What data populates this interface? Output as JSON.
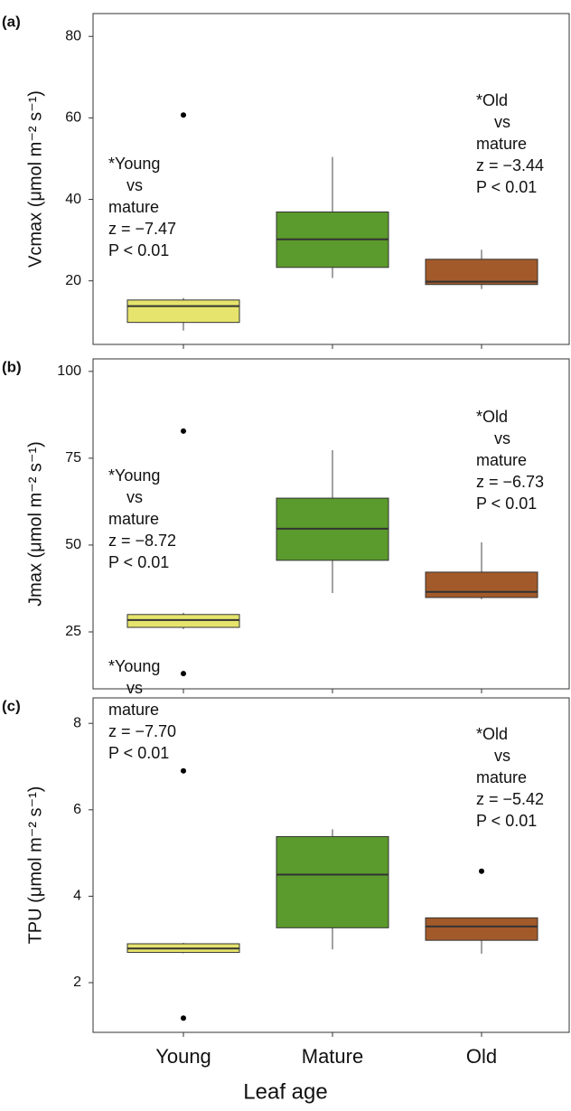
{
  "chart_data": [
    {
      "type": "box",
      "panel": "(a)",
      "ylabel": "Vcmax (μmol m⁻² s⁻¹)",
      "ylim": [
        4.4,
        85.6
      ],
      "yticks": [
        20,
        40,
        60,
        80
      ],
      "colors": [
        "#e6e46c",
        "#5b9a2c",
        "#a35a2a"
      ],
      "boxes": [
        {
          "whislo": 7.8,
          "q1": 9.8,
          "med": 13.8,
          "q3": 15.3,
          "whishi": 15.8,
          "fliers": [
            60.7
          ]
        },
        {
          "whislo": 20.7,
          "q1": 23.3,
          "med": 30.2,
          "q3": 36.9,
          "whishi": 50.4,
          "fliers": []
        },
        {
          "whislo": 18.0,
          "q1": 19.1,
          "med": 19.8,
          "q3": 25.3,
          "whishi": 27.6,
          "fliers": []
        }
      ],
      "annotations": [
        [
          "*Young",
          "vs",
          "mature",
          "z = −7.47",
          "P < 0.01"
        ],
        [
          "*Old",
          "vs",
          "mature",
          "z = −3.44",
          "P < 0.01"
        ]
      ]
    },
    {
      "type": "box",
      "panel": "(b)",
      "ylabel": "Jmax (μmol m⁻² s⁻¹)",
      "ylim": [
        8.6,
        103.6
      ],
      "yticks": [
        25,
        50,
        75,
        100
      ],
      "colors": [
        "#e6e46c",
        "#5b9a2c",
        "#a35a2a"
      ],
      "boxes": [
        {
          "whislo": 25.8,
          "q1": 26.3,
          "med": 28.4,
          "q3": 30.0,
          "whishi": 30.5,
          "fliers": [
            82.8,
            13.0
          ]
        },
        {
          "whislo": 36.2,
          "q1": 45.6,
          "med": 54.7,
          "q3": 63.5,
          "whishi": 77.3,
          "fliers": []
        },
        {
          "whislo": 34.4,
          "q1": 34.9,
          "med": 36.5,
          "q3": 42.2,
          "whishi": 50.8,
          "fliers": []
        }
      ],
      "annotations": [
        [
          "*Young",
          "vs",
          "mature",
          "z = −8.72",
          "P < 0.01"
        ],
        [
          "*Old",
          "vs",
          "mature",
          "z = −6.73",
          "P < 0.01"
        ]
      ]
    },
    {
      "type": "box",
      "panel": "(c)",
      "ylabel": "TPU (μmol m⁻² s⁻¹)",
      "ylim": [
        0.85,
        8.59
      ],
      "yticks": [
        2,
        4,
        6,
        8
      ],
      "colors": [
        "#e6e46c",
        "#5b9a2c",
        "#a35a2a"
      ],
      "boxes": [
        {
          "whislo": 2.68,
          "q1": 2.7,
          "med": 2.79,
          "q3": 2.9,
          "whishi": 2.92,
          "fliers": [
            6.9,
            1.18
          ]
        },
        {
          "whislo": 2.77,
          "q1": 3.27,
          "med": 4.5,
          "q3": 5.38,
          "whishi": 5.55,
          "fliers": []
        },
        {
          "whislo": 2.67,
          "q1": 2.98,
          "med": 3.3,
          "q3": 3.5,
          "whishi": 3.5,
          "fliers": [
            4.58
          ]
        }
      ],
      "annotations": [
        [
          "*Young",
          "vs",
          "mature",
          "z = −7.70",
          "P < 0.01"
        ],
        [
          "*Old",
          "vs",
          "mature",
          "z = −5.42",
          "P < 0.01"
        ]
      ]
    }
  ],
  "categories": [
    "Young",
    "Mature",
    "Old"
  ],
  "xlabel": "Leaf age"
}
